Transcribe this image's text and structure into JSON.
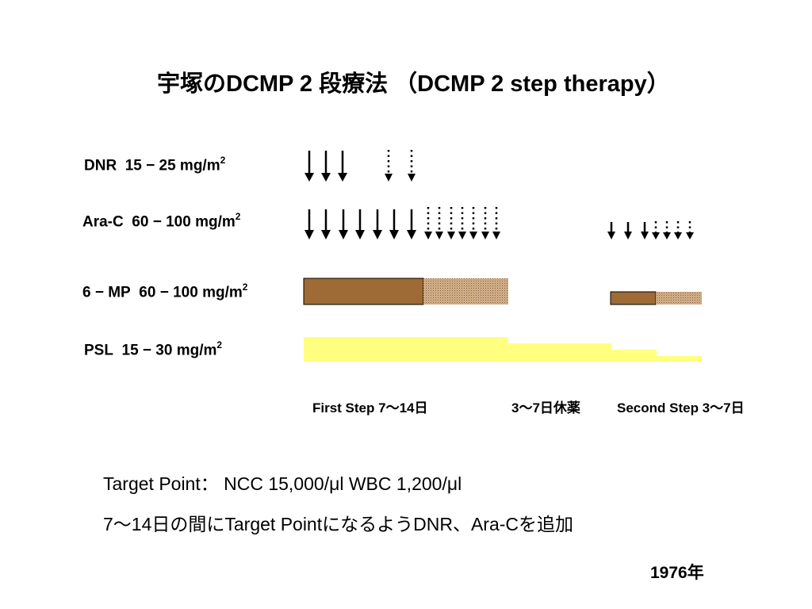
{
  "title": "宇塚のDCMP 2 段療法 （DCMP 2 step therapy）",
  "drugs": {
    "dnr": {
      "name": "DNR",
      "dose": "15 − 25 mg/m",
      "exp": "2"
    },
    "arac": {
      "name": "Ara-C",
      "dose": "60 − 100 mg/m",
      "exp": "2"
    },
    "mp": {
      "name": "6 − MP",
      "dose": "60 − 100 mg/m",
      "exp": "2"
    },
    "psl": {
      "name": "PSL",
      "dose": "15 − 30 mg/m",
      "exp": "2"
    }
  },
  "steps": {
    "first": "First Step 7〜14日",
    "rest": "3〜7日休薬",
    "second": "Second Step 3〜7日"
  },
  "notes": {
    "target": "Target Point： NCC 15,000/μl WBC 1,200/μl",
    "add": "7〜14日の間にTarget PointになるようDNR、Ara-Cを追加"
  },
  "year": "1976年",
  "colors": {
    "mp_solid": "#9e6a35",
    "mp_optional": "#d8b58f",
    "psl": "#ffff80",
    "arrow": "#000000"
  }
}
